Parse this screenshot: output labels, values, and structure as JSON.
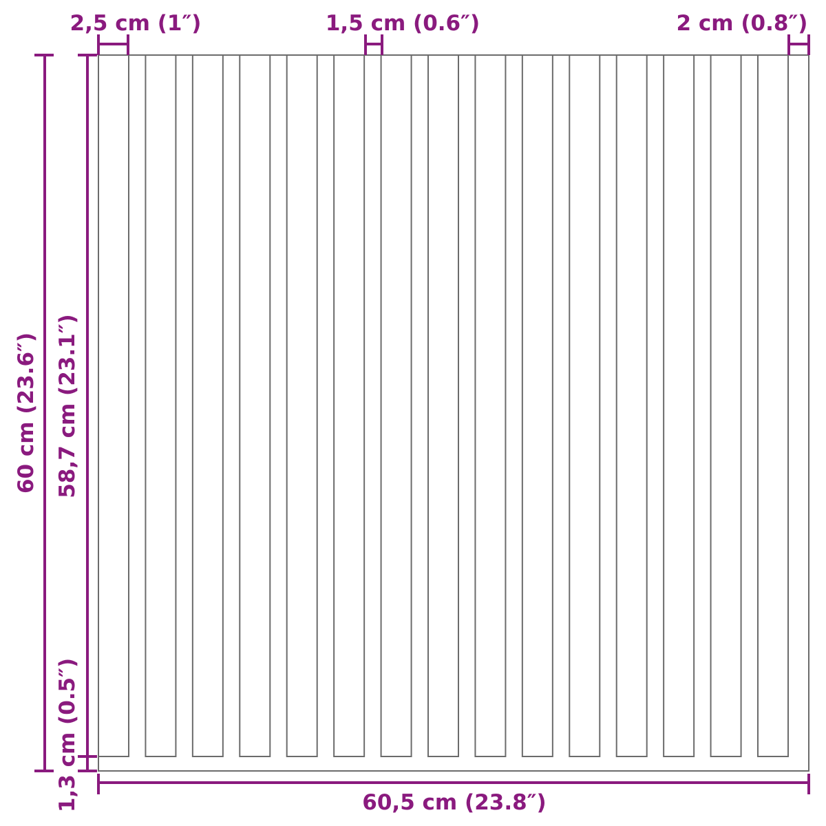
{
  "colors": {
    "dimension": "#8a1a7e",
    "outline": "#6b6b6b"
  },
  "slat_count": 15,
  "labels": {
    "slat_width": "2,5 cm (1″)",
    "gap_width": "1,5 cm (0.6″)",
    "edge_margin": "2 cm (0.8″)",
    "total_height": "60 cm (23.6″)",
    "slat_height": "58,7 cm (23.1″)",
    "bottom_margin": "1,3 cm (0.5″)",
    "total_width": "60,5 cm (23.8″)"
  }
}
